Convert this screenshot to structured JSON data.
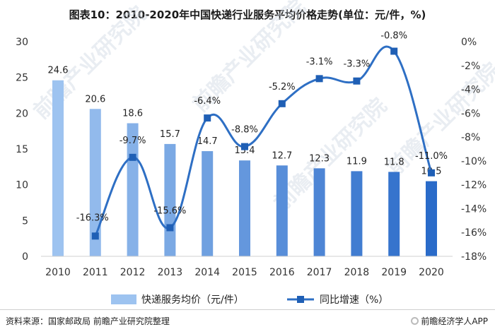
{
  "title": "图表10：2010-2020年中国快递行业服务平均价格走势(单位：元/件，%)",
  "source": "资料来源：国家邮政局 前瞻产业研究院整理",
  "brand": "前瞻经济学人APP",
  "watermark": "前瞻产业研究院",
  "colors": {
    "bar_light": "#9DC3F0",
    "bar_dark": "#2A6BC9",
    "line": "#2E6FC4",
    "marker": "#1F5FB5"
  },
  "chart_data": {
    "type": "bar+line",
    "categories": [
      "2010",
      "2011",
      "2012",
      "2013",
      "2014",
      "2015",
      "2016",
      "2017",
      "2018",
      "2019",
      "2020"
    ],
    "series": [
      {
        "name": "快递服务均价（元/件）",
        "type": "bar",
        "axis": "left",
        "values": [
          24.6,
          20.6,
          18.6,
          15.7,
          14.7,
          13.4,
          12.7,
          12.3,
          11.9,
          11.8,
          10.5
        ],
        "labels": [
          "24.6",
          "20.6",
          "18.6",
          "15.7",
          "14.7",
          "13.4",
          "12.7",
          "12.3",
          "11.9",
          "11.8",
          "10.5"
        ]
      },
      {
        "name": "同比增速（%）",
        "type": "line",
        "axis": "right",
        "values": [
          null,
          -16.3,
          -9.7,
          -15.6,
          -6.4,
          -8.8,
          -5.2,
          -3.1,
          -3.3,
          -0.8,
          -11.0
        ],
        "labels": [
          "",
          "-16.3%",
          "-9.7%",
          "-15.6%",
          "-6.4%",
          "-8.8%",
          "-5.2%",
          "-3.1%",
          "-3.3%",
          "-0.8%",
          "-11.0%"
        ]
      }
    ],
    "y_left": {
      "min": 0,
      "max": 30,
      "ticks": [
        "0",
        "5",
        "10",
        "15",
        "20",
        "25",
        "30"
      ]
    },
    "y_right": {
      "min": -18,
      "max": 0,
      "ticks": [
        "0%",
        "-2%",
        "-4%",
        "-6%",
        "-8%",
        "-10%",
        "-12%",
        "-14%",
        "-16%",
        "-18%"
      ]
    },
    "legend": {
      "position": "bottom",
      "bar_label": "快递服务均价（元/件）",
      "line_label": "同比增速（%）"
    }
  }
}
